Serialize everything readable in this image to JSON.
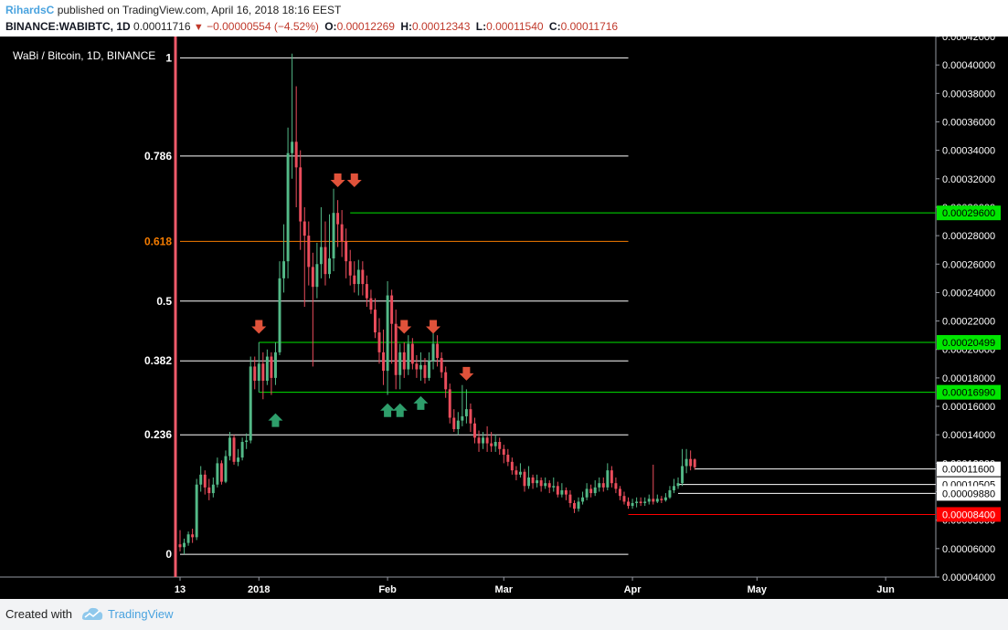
{
  "header": {
    "author": "RihardsC",
    "published": "published on TradingView.com, April 16, 2018 18:16 EEST",
    "symbol": "BINANCE:WABIBTC, 1D",
    "last": "0.00011716",
    "change": "−0.00000554 (−4.52%)",
    "o_label": "O:",
    "o_value": "0.00012269",
    "h_label": "H:",
    "h_value": "0.00012343",
    "l_label": "L:",
    "l_value": "0.00011540",
    "c_label": "C:",
    "c_value": "0.00011716"
  },
  "footer": {
    "created_with": "Created with",
    "brand": "TradingView"
  },
  "colors": {
    "up": "#53b987",
    "down": "#eb4d5c",
    "bg": "#000000",
    "fib_orange": "#f57c00",
    "marker_down": "#e0523a",
    "marker_up": "#2e9e6b",
    "hline_green": "#00e600",
    "hline_red": "#ff0000"
  },
  "chart_data": {
    "type": "candlestick",
    "title": "WaBi / Bitcoin, 1D, BINANCE",
    "ylim": [
      4e-05,
      0.00042
    ],
    "y_ticks": [
      "0.00004000",
      "0.00006000",
      "0.00008000",
      "0.00010000",
      "0.00012000",
      "0.00014000",
      "0.00016000",
      "0.00018000",
      "0.00020000",
      "0.00022000",
      "0.00024000",
      "0.00026000",
      "0.00028000",
      "0.00030000",
      "0.00032000",
      "0.00034000",
      "0.00036000",
      "0.00038000",
      "0.00040000",
      "0.00042000"
    ],
    "x_range": [
      "2017-12-13",
      "2018-06-10"
    ],
    "x_ticks": [
      {
        "label": "13",
        "date": "2017-12-13"
      },
      {
        "label": "2018",
        "date": "2018-01-01",
        "bold": true
      },
      {
        "label": "Feb",
        "date": "2018-02-01"
      },
      {
        "label": "Mar",
        "date": "2018-03-01"
      },
      {
        "label": "Apr",
        "date": "2018-04-01"
      },
      {
        "label": "May",
        "date": "2018-05-01"
      },
      {
        "label": "Jun",
        "date": "2018-06-01"
      }
    ],
    "fib_levels": [
      {
        "label": "1",
        "value": 0.000405,
        "color": "#ffffff"
      },
      {
        "label": "0.786",
        "value": 0.000336,
        "color": "#ffffff"
      },
      {
        "label": "0.618",
        "value": 0.000276,
        "color": "#f57c00"
      },
      {
        "label": "0.5",
        "value": 0.000234,
        "color": "#ffffff"
      },
      {
        "label": "0.382",
        "value": 0.000192,
        "color": "#ffffff"
      },
      {
        "label": "0.236",
        "value": 0.00014,
        "color": "#ffffff"
      },
      {
        "label": "0",
        "value": 5.6e-05,
        "color": "#ffffff"
      }
    ],
    "fib_range": [
      "2017-12-13",
      "2018-03-31"
    ],
    "horizontal_lines": [
      {
        "value": 0.000296,
        "label": "0.00029600",
        "color": "#00e600",
        "from": "2018-01-23"
      },
      {
        "value": 0.00020499,
        "label": "0.00020499",
        "color": "#00e600",
        "from": "2018-01-01"
      },
      {
        "value": 0.0001699,
        "label": "0.00016990",
        "color": "#00e600",
        "from": "2018-01-01"
      },
      {
        "value": 0.000116,
        "label": "0.00011600",
        "color": "#ffffff",
        "from": "2018-04-16"
      },
      {
        "value": 0.00010505,
        "label": "0.00010505",
        "color": "#ffffff",
        "from": "2018-04-12"
      },
      {
        "value": 9.88e-05,
        "label": "0.00009880",
        "color": "#ffffff",
        "from": "2018-04-12"
      },
      {
        "value": 8.4e-05,
        "label": "0.00008400",
        "color": "#ff0000",
        "from": "2018-03-31"
      }
    ],
    "markers": [
      {
        "date": "2018-01-01",
        "dir": "down",
        "value": 0.000213
      },
      {
        "date": "2018-01-20",
        "dir": "down",
        "value": 0.000316
      },
      {
        "date": "2018-01-24",
        "dir": "down",
        "value": 0.000316
      },
      {
        "date": "2018-02-05",
        "dir": "down",
        "value": 0.000213
      },
      {
        "date": "2018-02-12",
        "dir": "down",
        "value": 0.000213
      },
      {
        "date": "2018-02-20",
        "dir": "down",
        "value": 0.00018
      },
      {
        "date": "2018-01-05",
        "dir": "up",
        "value": 0.00015
      },
      {
        "date": "2018-02-01",
        "dir": "up",
        "value": 0.000157
      },
      {
        "date": "2018-02-04",
        "dir": "up",
        "value": 0.000157
      },
      {
        "date": "2018-02-09",
        "dir": "up",
        "value": 0.000162
      }
    ],
    "candles": [
      [
        "2017-12-13",
        6.3e-05,
        6.1e-05,
        7.3e-05,
        5.8e-05
      ],
      [
        "2017-12-14",
        6.1e-05,
        6.4e-05,
        6.7e-05,
        5.6e-05
      ],
      [
        "2017-12-15",
        6.4e-05,
        7e-05,
        7.2e-05,
        6.2e-05
      ],
      [
        "2017-12-16",
        7e-05,
        6.8e-05,
        7.4e-05,
        6.4e-05
      ],
      [
        "2017-12-17",
        6.8e-05,
        0.000105,
        0.000109,
        6.6e-05
      ],
      [
        "2017-12-18",
        0.000105,
        0.000112,
        0.000118,
        0.0001
      ],
      [
        "2017-12-19",
        0.000112,
        0.000103,
        0.000115,
        9.8e-05
      ],
      [
        "2017-12-20",
        0.000103,
        9.9e-05,
        0.000109,
        9.4e-05
      ],
      [
        "2017-12-21",
        9.9e-05,
        0.000105,
        0.00011,
        9.6e-05
      ],
      [
        "2017-12-22",
        0.000105,
        0.00012,
        0.000124,
        0.000103
      ],
      [
        "2017-12-23",
        0.00012,
        0.000107,
        0.000122,
        0.000105
      ],
      [
        "2017-12-24",
        0.000107,
        0.000125,
        0.000129,
        0.000106
      ],
      [
        "2017-12-25",
        0.000125,
        0.000138,
        0.000142,
        0.000122
      ],
      [
        "2017-12-26",
        0.000138,
        0.000121,
        0.00014,
        0.000119
      ],
      [
        "2017-12-27",
        0.000121,
        0.000124,
        0.00013,
        0.000118
      ],
      [
        "2017-12-28",
        0.000124,
        0.000135,
        0.000138,
        0.000122
      ],
      [
        "2017-12-29",
        0.000135,
        0.000136,
        0.000141,
        0.00013
      ],
      [
        "2017-12-30",
        0.000136,
        0.000188,
        0.000195,
        0.000134
      ],
      [
        "2017-12-31",
        0.000188,
        0.000178,
        0.000195,
        0.000172
      ],
      [
        "2018-01-01",
        0.000178,
        0.00019,
        0.000205,
        0.00017
      ],
      [
        "2018-01-02",
        0.00019,
        0.000178,
        0.000198,
        0.000165
      ],
      [
        "2018-01-03",
        0.000178,
        0.000195,
        0.0002,
        0.000175
      ],
      [
        "2018-01-04",
        0.000195,
        0.00018,
        0.000198,
        0.000168
      ],
      [
        "2018-01-05",
        0.00018,
        0.000198,
        0.000205,
        0.000175
      ],
      [
        "2018-01-06",
        0.000198,
        0.00025,
        0.000262,
        0.000196
      ],
      [
        "2018-01-07",
        0.00025,
        0.000262,
        0.000288,
        0.00024
      ],
      [
        "2018-01-08",
        0.000262,
        0.000338,
        0.000356,
        0.00025
      ],
      [
        "2018-01-09",
        0.000338,
        0.000346,
        0.000408,
        0.00032
      ],
      [
        "2018-01-10",
        0.000346,
        0.000328,
        0.000385,
        0.0003
      ],
      [
        "2018-01-11",
        0.000328,
        0.00029,
        0.00034,
        0.00027
      ],
      [
        "2018-01-12",
        0.00029,
        0.00028,
        0.0003,
        0.00023
      ],
      [
        "2018-01-13",
        0.00028,
        0.000258,
        0.00029,
        0.000245
      ],
      [
        "2018-01-14",
        0.000258,
        0.000244,
        0.000268,
        0.000188
      ],
      [
        "2018-01-15",
        0.000244,
        0.00026,
        0.000275,
        0.000236
      ],
      [
        "2018-01-16",
        0.00026,
        0.000272,
        0.0003,
        0.00025
      ],
      [
        "2018-01-17",
        0.000272,
        0.000253,
        0.00029,
        0.000245
      ],
      [
        "2018-01-18",
        0.000253,
        0.000264,
        0.000295,
        0.00025
      ],
      [
        "2018-01-19",
        0.000264,
        0.000296,
        0.000313,
        0.000255
      ],
      [
        "2018-01-20",
        0.000296,
        0.000288,
        0.000305,
        0.000272
      ],
      [
        "2018-01-21",
        0.000288,
        0.000276,
        0.000298,
        0.000265
      ],
      [
        "2018-01-22",
        0.000276,
        0.000262,
        0.000285,
        0.00025
      ],
      [
        "2018-01-23",
        0.000262,
        0.000252,
        0.00027,
        0.000245
      ],
      [
        "2018-01-24",
        0.000252,
        0.000246,
        0.000262,
        0.00024
      ],
      [
        "2018-01-25",
        0.000246,
        0.000256,
        0.000263,
        0.000238
      ],
      [
        "2018-01-26",
        0.000256,
        0.000246,
        0.000262,
        0.000238
      ],
      [
        "2018-01-27",
        0.000246,
        0.000236,
        0.000252,
        0.00023
      ],
      [
        "2018-01-28",
        0.000236,
        0.000228,
        0.000242,
        0.000225
      ],
      [
        "2018-01-29",
        0.000228,
        0.000212,
        0.000236,
        0.000208
      ],
      [
        "2018-01-30",
        0.000212,
        0.000198,
        0.000222,
        0.00019
      ],
      [
        "2018-01-31",
        0.000198,
        0.000185,
        0.000214,
        0.000175
      ],
      [
        "2018-02-01",
        0.000185,
        0.000238,
        0.000248,
        0.000168
      ],
      [
        "2018-02-02",
        0.000238,
        0.000218,
        0.000242,
        0.00019
      ],
      [
        "2018-02-03",
        0.000218,
        0.000182,
        0.000228,
        0.000172
      ],
      [
        "2018-02-04",
        0.000182,
        0.000198,
        0.000204,
        0.000172
      ],
      [
        "2018-02-05",
        0.000198,
        0.000186,
        0.000205,
        0.00018
      ],
      [
        "2018-02-06",
        0.000186,
        0.000204,
        0.00021,
        0.000182
      ],
      [
        "2018-02-07",
        0.000204,
        0.00019,
        0.000208,
        0.000186
      ],
      [
        "2018-02-08",
        0.00019,
        0.000186,
        0.000196,
        0.00018
      ],
      [
        "2018-02-09",
        0.000186,
        0.000189,
        0.000198,
        0.000178
      ],
      [
        "2018-02-10",
        0.000189,
        0.00018,
        0.000194,
        0.000176
      ],
      [
        "2018-02-11",
        0.00018,
        0.000192,
        0.000198,
        0.000178
      ],
      [
        "2018-02-12",
        0.000192,
        0.000204,
        0.000212,
        0.000186
      ],
      [
        "2018-02-13",
        0.000204,
        0.000194,
        0.00021,
        0.000188
      ],
      [
        "2018-02-14",
        0.000194,
        0.000184,
        0.000198,
        0.00018
      ],
      [
        "2018-02-15",
        0.000184,
        0.000172,
        0.000188,
        0.000166
      ],
      [
        "2018-02-16",
        0.000172,
        0.000152,
        0.000176,
        0.000148
      ],
      [
        "2018-02-17",
        0.000152,
        0.000144,
        0.000158,
        0.000142
      ],
      [
        "2018-02-18",
        0.000144,
        0.00015,
        0.000156,
        0.00014
      ],
      [
        "2018-02-19",
        0.00015,
        0.000153,
        0.000175,
        0.000146
      ],
      [
        "2018-02-20",
        0.000153,
        0.000158,
        0.000172,
        0.000148
      ],
      [
        "2018-02-21",
        0.000158,
        0.000148,
        0.000162,
        0.000142
      ],
      [
        "2018-02-22",
        0.000148,
        0.000138,
        0.000152,
        0.000134
      ],
      [
        "2018-02-23",
        0.000138,
        0.000134,
        0.000143,
        0.000128
      ],
      [
        "2018-02-24",
        0.000134,
        0.000138,
        0.000142,
        0.00013
      ],
      [
        "2018-02-25",
        0.000138,
        0.000134,
        0.000146,
        0.000128
      ],
      [
        "2018-02-26",
        0.000134,
        0.000132,
        0.000142,
        0.000128
      ],
      [
        "2018-02-27",
        0.000132,
        0.000135,
        0.00014,
        0.000128
      ],
      [
        "2018-02-28",
        0.000135,
        0.00013,
        0.000138,
        0.000126
      ],
      [
        "2018-03-01",
        0.00013,
        0.000126,
        0.000133,
        0.00012
      ],
      [
        "2018-03-02",
        0.000126,
        0.000121,
        0.00013,
        0.000118
      ],
      [
        "2018-03-03",
        0.000121,
        0.000115,
        0.000124,
        0.000112
      ],
      [
        "2018-03-04",
        0.000115,
        0.000112,
        0.000118,
        0.000108
      ],
      [
        "2018-03-05",
        0.000112,
        0.000114,
        0.00012,
        0.00011
      ],
      [
        "2018-03-06",
        0.000114,
        0.000104,
        0.000116,
        0.0001
      ],
      [
        "2018-03-07",
        0.000104,
        0.00011,
        0.000118,
        0.000102
      ],
      [
        "2018-03-08",
        0.00011,
        0.000106,
        0.000112,
        0.000102
      ],
      [
        "2018-03-09",
        0.000106,
        0.000108,
        0.000112,
        0.000103
      ],
      [
        "2018-03-10",
        0.000108,
        0.000104,
        0.00011,
        0.0001
      ],
      [
        "2018-03-11",
        0.000104,
        0.000106,
        0.00011,
        0.000102
      ],
      [
        "2018-03-12",
        0.000106,
        0.000103,
        0.000108,
        9.9e-05
      ],
      [
        "2018-03-13",
        0.000103,
        0.000104,
        0.00011,
        0.0001
      ],
      [
        "2018-03-14",
        0.000104,
        9.8e-05,
        0.000107,
        9.6e-05
      ],
      [
        "2018-03-15",
        9.8e-05,
        0.000101,
        0.000106,
        9.6e-05
      ],
      [
        "2018-03-16",
        0.000101,
        9.8e-05,
        0.000103,
        9.4e-05
      ],
      [
        "2018-03-17",
        9.8e-05,
        9.2e-05,
        0.000101,
        8.9e-05
      ],
      [
        "2018-03-18",
        9.2e-05,
        8.8e-05,
        9.4e-05,
        8.5e-05
      ],
      [
        "2018-03-19",
        8.8e-05,
        9.3e-05,
        9.6e-05,
        8.6e-05
      ],
      [
        "2018-03-20",
        9.3e-05,
        9.6e-05,
        0.0001,
        9.1e-05
      ],
      [
        "2018-03-21",
        9.6e-05,
        0.000102,
        0.000106,
        9.4e-05
      ],
      [
        "2018-03-22",
        0.000102,
        9.9e-05,
        0.000105,
        9.6e-05
      ],
      [
        "2018-03-23",
        9.9e-05,
        0.000103,
        0.000108,
        9.7e-05
      ],
      [
        "2018-03-24",
        0.000103,
        0.000106,
        0.00011,
        0.0001
      ],
      [
        "2018-03-25",
        0.000106,
        0.000103,
        0.00011,
        0.0001
      ],
      [
        "2018-03-26",
        0.000103,
        0.000115,
        0.00012,
        0.000101
      ],
      [
        "2018-03-27",
        0.000115,
        0.000106,
        0.000118,
        0.000103
      ],
      [
        "2018-03-28",
        0.000106,
        0.000102,
        0.00011,
        9.9e-05
      ],
      [
        "2018-03-29",
        0.000102,
        9.7e-05,
        0.000104,
        9.4e-05
      ],
      [
        "2018-03-30",
        9.7e-05,
        9.3e-05,
        0.0001,
        9.1e-05
      ],
      [
        "2018-03-31",
        9.3e-05,
        9e-05,
        9.6e-05,
        8.8e-05
      ],
      [
        "2018-04-01",
        9e-05,
        9.2e-05,
        9.5e-05,
        8.8e-05
      ],
      [
        "2018-04-02",
        9.2e-05,
        9.3e-05,
        9.6e-05,
        8.9e-05
      ],
      [
        "2018-04-03",
        9.3e-05,
        9.2e-05,
        9.6e-05,
        9e-05
      ],
      [
        "2018-04-04",
        9.2e-05,
        9.3e-05,
        9.6e-05,
        9e-05
      ],
      [
        "2018-04-05",
        9.3e-05,
        9.5e-05,
        9.8e-05,
        9.1e-05
      ],
      [
        "2018-04-06",
        9.5e-05,
        9.3e-05,
        0.000119,
        9.1e-05
      ],
      [
        "2018-04-07",
        9.3e-05,
        9.5e-05,
        9.8e-05,
        9.2e-05
      ],
      [
        "2018-04-08",
        9.5e-05,
        9.4e-05,
        9.7e-05,
        9.2e-05
      ],
      [
        "2018-04-09",
        9.4e-05,
        9.6e-05,
        9.9e-05,
        9.3e-05
      ],
      [
        "2018-04-10",
        9.6e-05,
        0.000101,
        0.000104,
        9.5e-05
      ],
      [
        "2018-04-11",
        0.000101,
        0.000104,
        0.000109,
        9.9e-05
      ],
      [
        "2018-04-12",
        0.000104,
        0.000106,
        0.00011,
        0.000102
      ],
      [
        "2018-04-13",
        0.000106,
        0.000118,
        0.00013,
        0.000104
      ],
      [
        "2018-04-14",
        0.000118,
        0.000123,
        0.00013,
        0.000113
      ],
      [
        "2018-04-15",
        0.000123,
        0.000118,
        0.000129,
        0.000115
      ],
      [
        "2018-04-16",
        0.0001227,
        0.00011716,
        0.0001234,
        0.0001154
      ]
    ]
  }
}
